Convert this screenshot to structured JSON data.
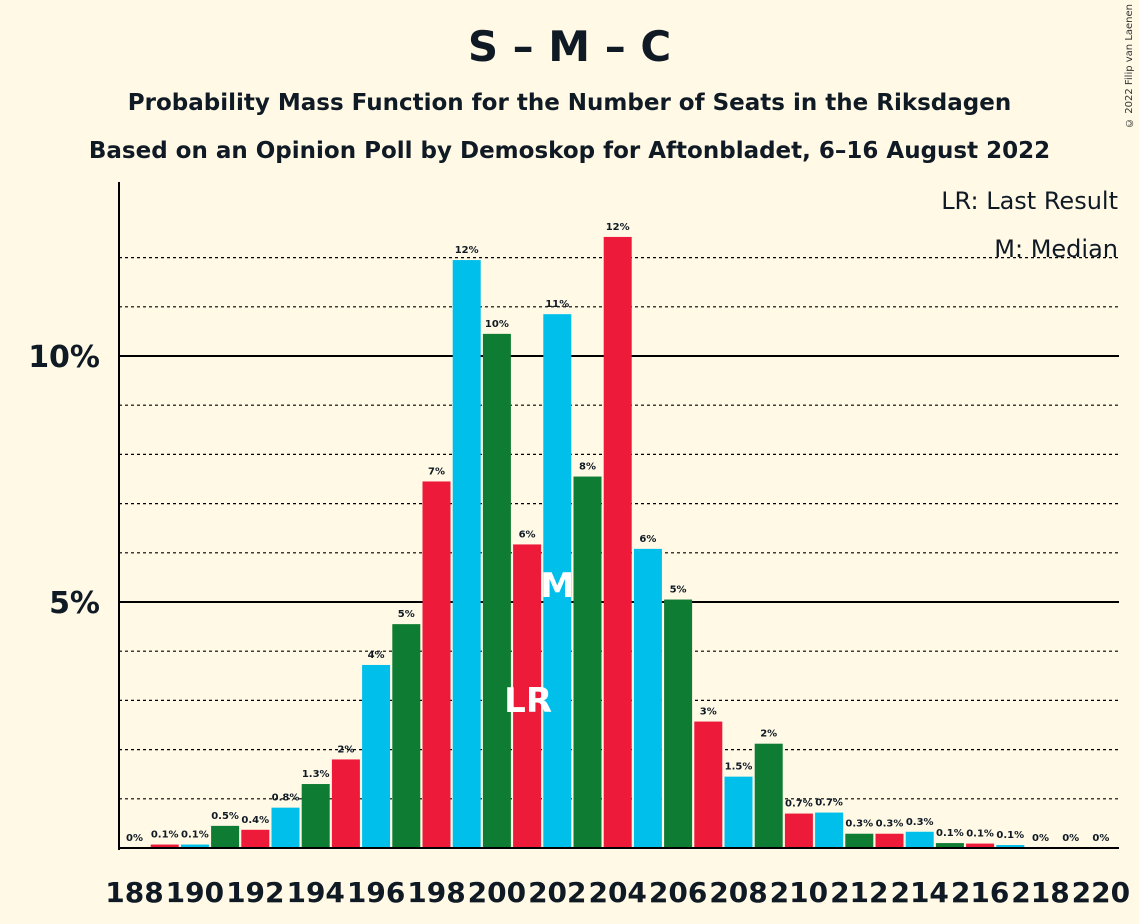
{
  "header": {
    "title": "S – M – C",
    "subtitle1": "Probability Mass Function for the Number of Seats in the Riksdagen",
    "subtitle2": "Based on an Opinion Poll by Demoskop for Aftonbladet, 6–16 August 2022",
    "copyright": "© 2022 Filip van Laenen"
  },
  "legend": {
    "last_result": "LR: Last Result",
    "median": "M: Median"
  },
  "colors": {
    "blue": "#00BFEA",
    "green": "#0E7C32",
    "red": "#EE1A3A",
    "background": "#FFF9E6"
  },
  "chart_data": {
    "type": "bar",
    "title": "S – M – C",
    "xlabel": "",
    "ylabel": "",
    "ylim": [
      0,
      13.6
    ],
    "yticks": [
      0,
      5,
      10
    ],
    "ytick_labels": [
      "",
      "5%",
      "10%"
    ],
    "x": [
      188,
      189,
      190,
      191,
      192,
      193,
      194,
      195,
      196,
      197,
      198,
      199,
      200,
      201,
      202,
      203,
      204,
      205,
      206,
      207,
      208,
      209,
      210,
      211,
      212,
      213,
      214,
      215,
      216,
      217,
      218,
      219,
      220
    ],
    "x_tick_labels": [
      "188",
      "190",
      "192",
      "194",
      "196",
      "198",
      "200",
      "202",
      "204",
      "206",
      "208",
      "210",
      "212",
      "214",
      "216",
      "218",
      "220"
    ],
    "values": [
      0,
      0.07,
      0.07,
      0.45,
      0.37,
      0.82,
      1.3,
      1.8,
      3.72,
      4.55,
      7.45,
      11.95,
      10.45,
      6.17,
      10.85,
      7.55,
      12.42,
      6.08,
      5.05,
      2.57,
      1.45,
      2.12,
      0.7,
      0.72,
      0.29,
      0.29,
      0.33,
      0.1,
      0.09,
      0.06,
      0,
      0,
      0
    ],
    "data_labels": [
      "0%",
      "0.1%",
      "0.1%",
      "0.5%",
      "0.4%",
      "0.8%",
      "1.3%",
      "2%",
      "4%",
      "5%",
      "7%",
      "12%",
      "10%",
      "6%",
      "11%",
      "8%",
      "12%",
      "6%",
      "5%",
      "3%",
      "1.5%",
      "2%",
      "0.7%",
      "0.7%",
      "0.3%",
      "0.3%",
      "0.3%",
      "0.1%",
      "0.1%",
      "0.1%",
      "0%",
      "0%",
      "0%"
    ],
    "bar_colors": [
      "green",
      "red",
      "blue",
      "green",
      "red",
      "blue",
      "green",
      "red",
      "blue",
      "green",
      "red",
      "blue",
      "green",
      "red",
      "blue",
      "green",
      "red",
      "blue",
      "green",
      "red",
      "blue",
      "green",
      "red",
      "blue",
      "green",
      "red",
      "blue",
      "green",
      "red",
      "blue",
      "green",
      "red",
      "blue"
    ],
    "last_result_seat": 201,
    "last_result_label": "LR",
    "median_seat": 202,
    "median_label": "M",
    "grid": true
  }
}
